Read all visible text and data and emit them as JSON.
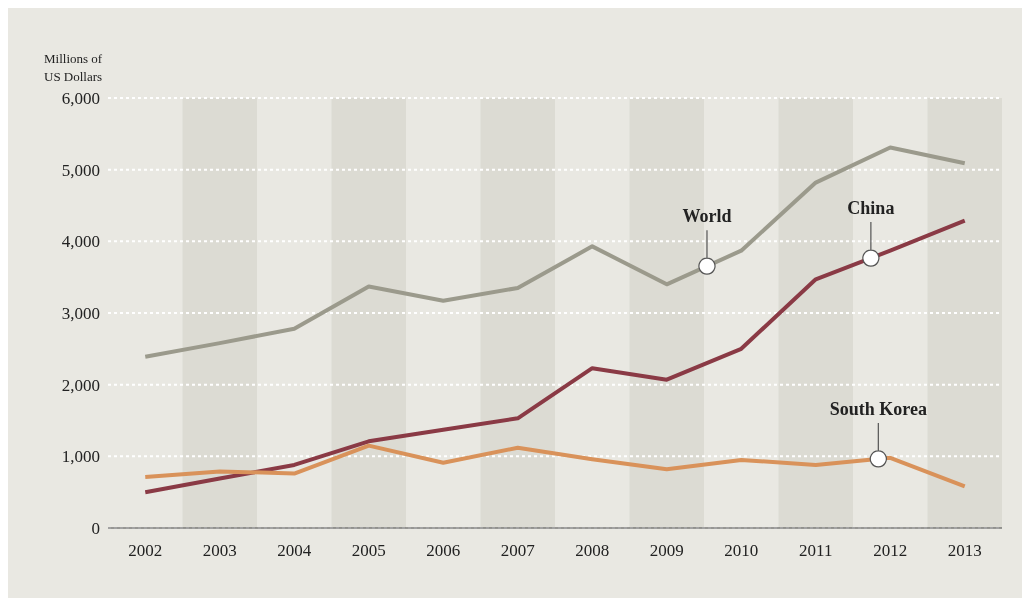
{
  "chart_data": {
    "type": "line",
    "ylabel": "Millions of US Dollars",
    "x": [
      2002,
      2003,
      2004,
      2005,
      2006,
      2007,
      2008,
      2009,
      2010,
      2011,
      2012,
      2013
    ],
    "xlim": [
      2001.5,
      2013.5
    ],
    "xticks": [
      2002,
      2003,
      2004,
      2005,
      2006,
      2007,
      2008,
      2009,
      2010,
      2011,
      2012,
      2013
    ],
    "ylim": [
      0,
      6000
    ],
    "yticks": [
      0,
      {
        "value": 1000,
        "label": "1,000"
      },
      {
        "value": 2000,
        "label": "2,000"
      },
      {
        "value": 3000,
        "label": "3,000"
      },
      {
        "value": 4000,
        "label": "4,000"
      },
      {
        "value": 5000,
        "label": "5,000"
      },
      {
        "value": 6000,
        "label": "6,000"
      }
    ],
    "grid": "y",
    "marker": "none",
    "line_style": "solid",
    "bands": [
      {
        "axis": "x",
        "from": 2002.5,
        "to": 2003.5,
        "color": "#dcdbd3"
      },
      {
        "axis": "x",
        "from": 2004.5,
        "to": 2005.5,
        "color": "#dcdbd3"
      },
      {
        "axis": "x",
        "from": 2006.5,
        "to": 2007.5,
        "color": "#dcdbd3"
      },
      {
        "axis": "x",
        "from": 2008.5,
        "to": 2009.5,
        "color": "#dcdbd3"
      },
      {
        "axis": "x",
        "from": 2010.5,
        "to": 2011.5,
        "color": "#dcdbd3"
      },
      {
        "axis": "x",
        "from": 2012.5,
        "to": 2013.5,
        "color": "#dcdbd3"
      }
    ],
    "series": [
      {
        "name": "World",
        "color": "#9b9a8c",
        "values": [
          2390,
          2580,
          2780,
          3370,
          3170,
          3350,
          3930,
          3400,
          3870,
          4820,
          5310,
          5090
        ]
      },
      {
        "name": "China",
        "color": "#8a3a45",
        "values": [
          500,
          690,
          880,
          1210,
          1370,
          1530,
          2230,
          2070,
          2500,
          3470,
          3870,
          4290
        ]
      },
      {
        "name": "South Korea",
        "color": "#d9925a",
        "values": [
          710,
          790,
          760,
          1150,
          910,
          1120,
          960,
          820,
          950,
          880,
          980,
          580
        ]
      }
    ]
  }
}
